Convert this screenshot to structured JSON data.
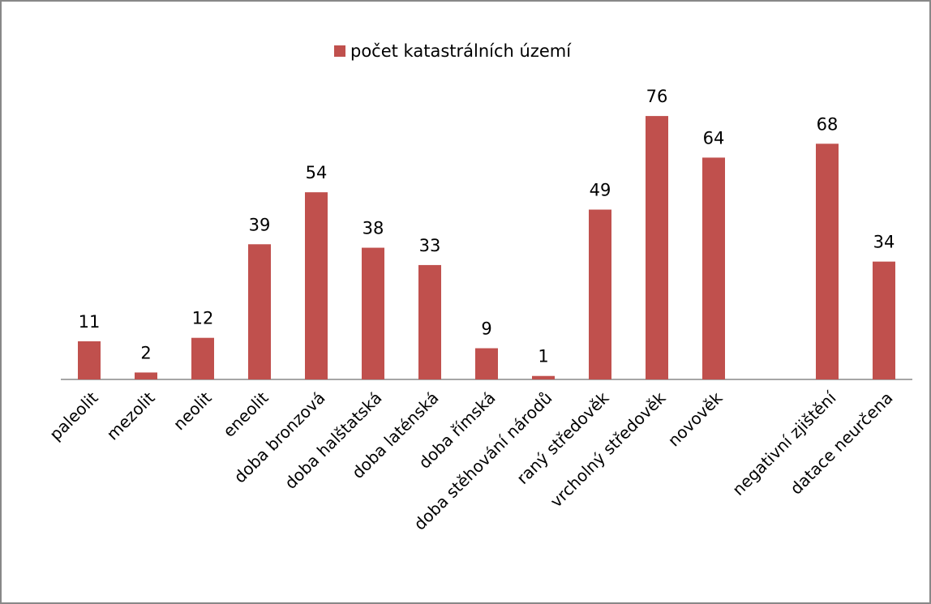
{
  "chart_data": {
    "type": "bar",
    "legend": "počet katastrálních území",
    "categories": [
      "paleolit",
      "mezolit",
      "neolit",
      "eneolit",
      "doba bronzová",
      "doba halštatská",
      "doba laténská",
      "doba římská",
      "doba stěhování národů",
      "raný středověk",
      "vrcholný středověk",
      "novověk",
      null,
      "negativní zjištění",
      "datace neurčena"
    ],
    "values": [
      11,
      2,
      12,
      39,
      54,
      38,
      33,
      9,
      1,
      49,
      76,
      64,
      null,
      68,
      34
    ],
    "color": "#c0504d",
    "ylim": [
      0,
      80
    ]
  }
}
